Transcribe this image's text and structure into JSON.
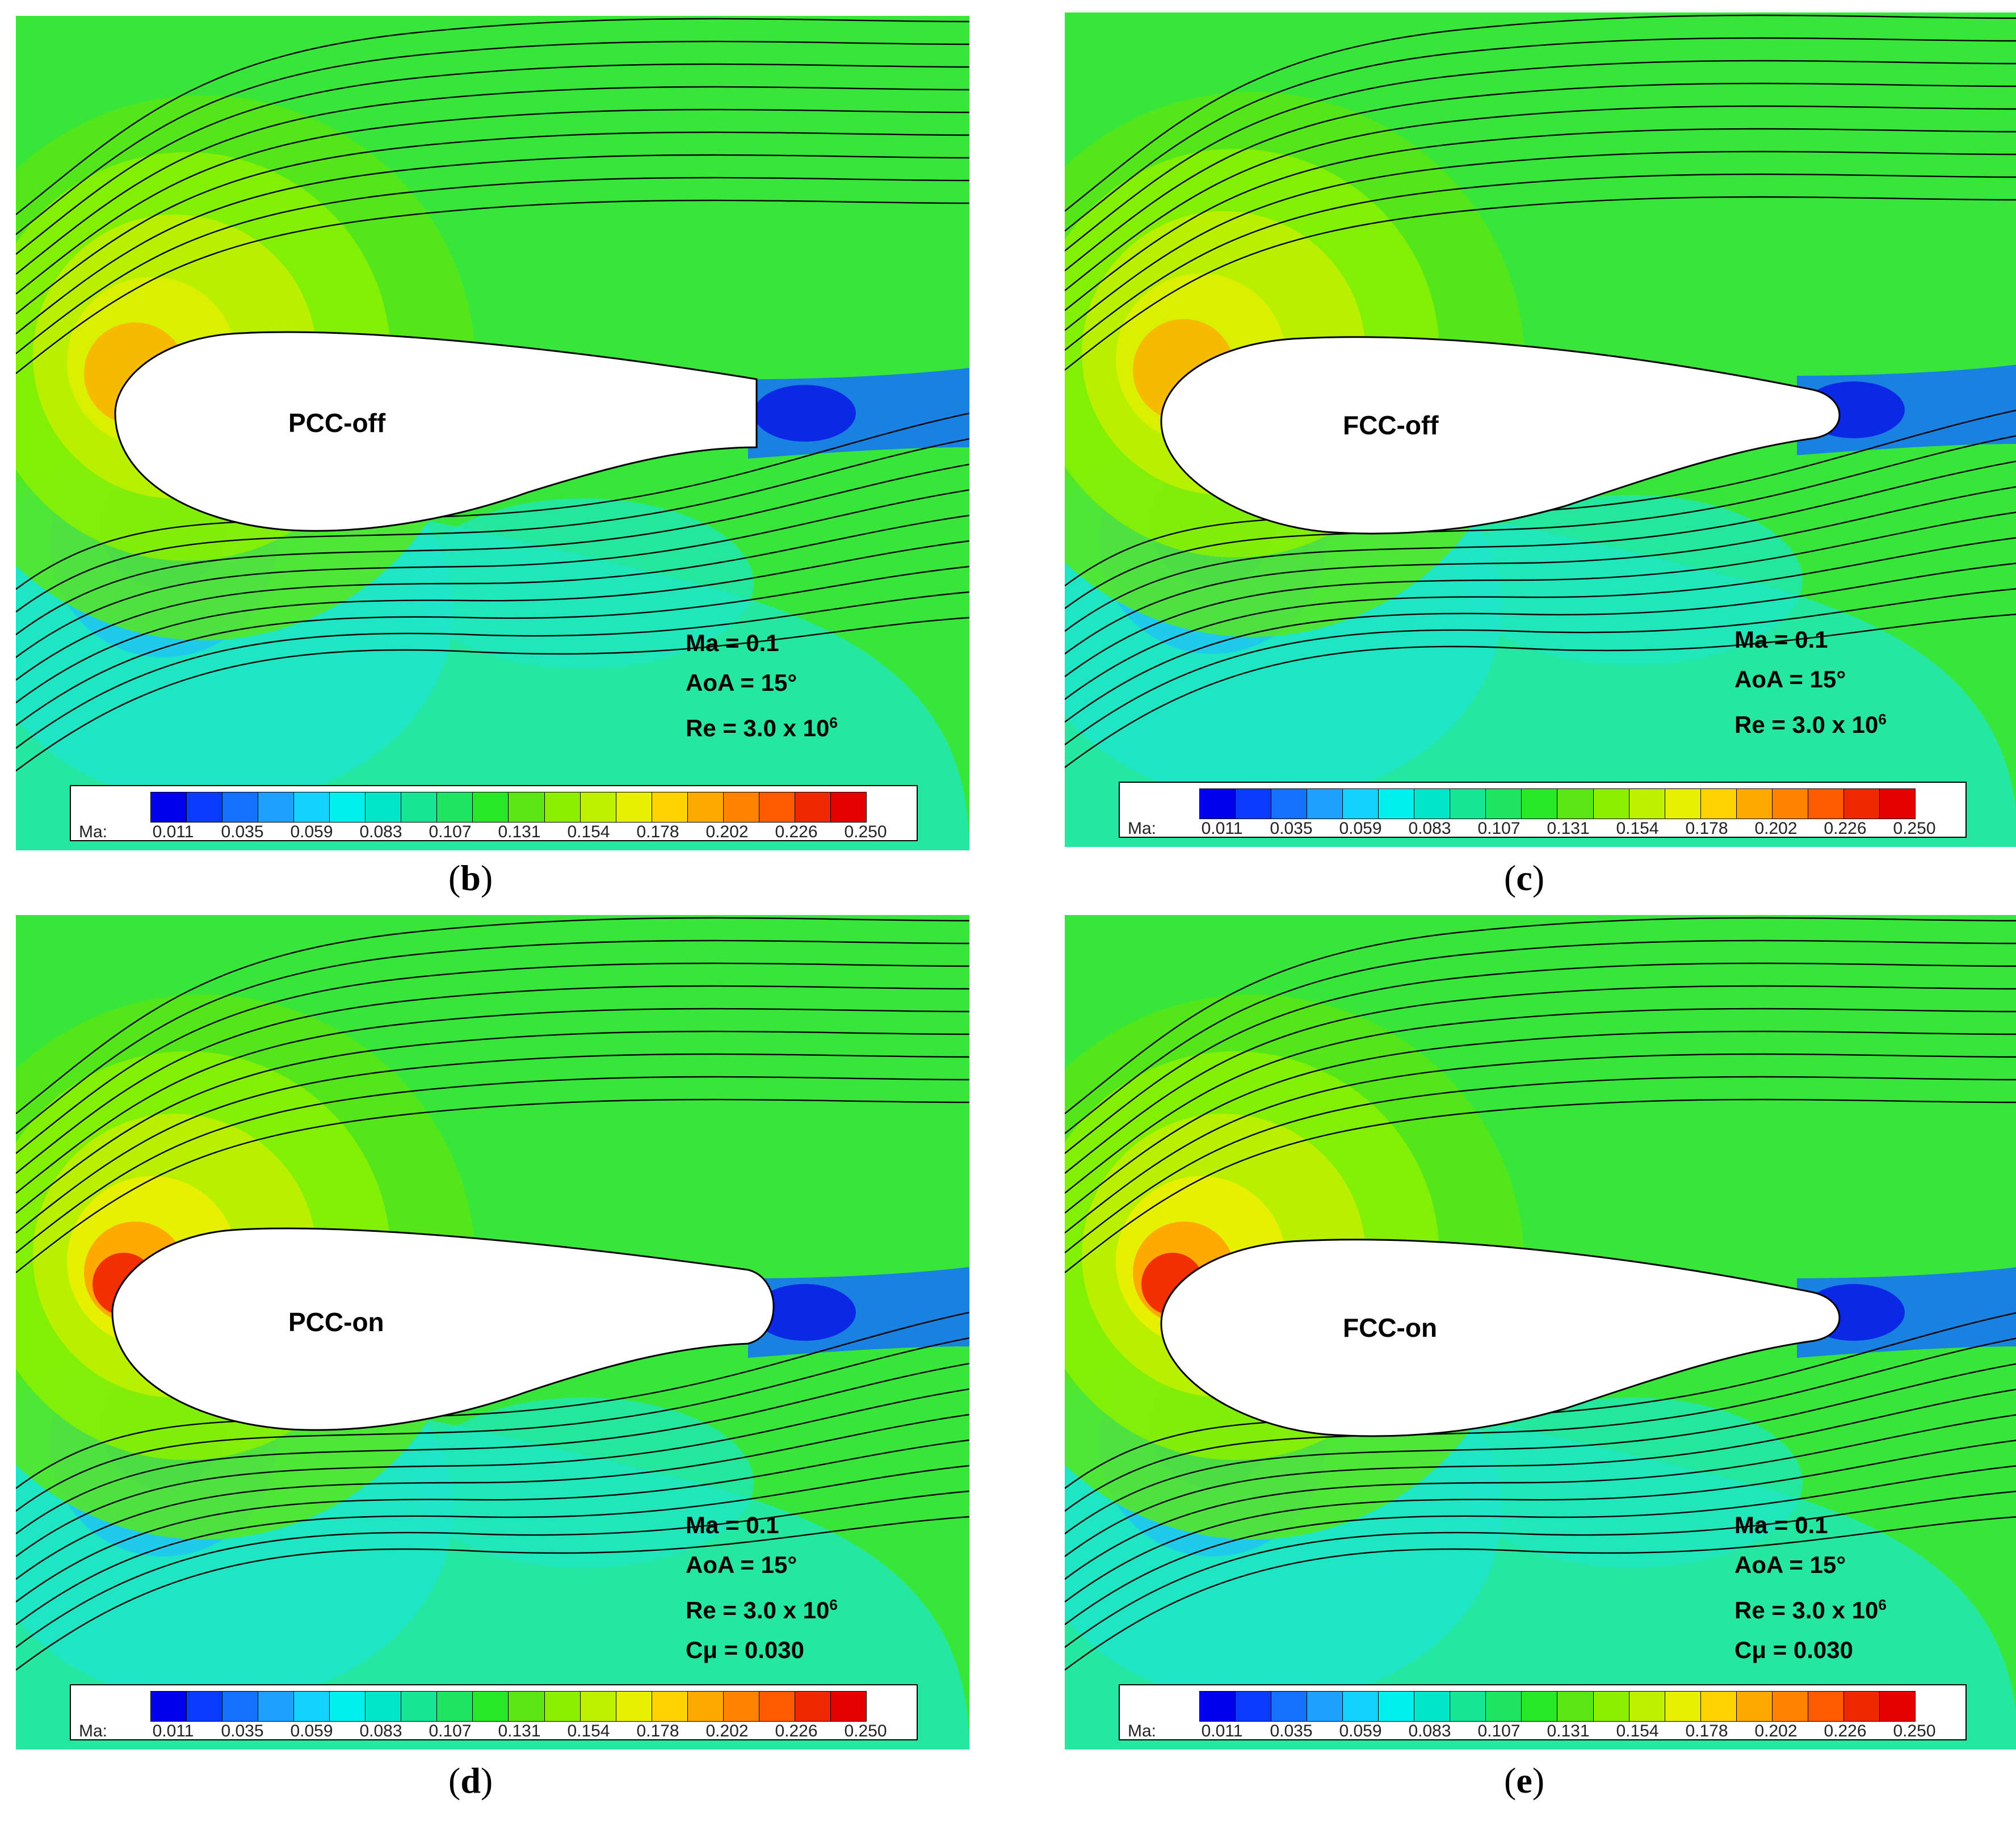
{
  "panels": [
    {
      "id": "b",
      "case": "PCC-off",
      "caption_letter": "b",
      "params": [
        "Ma = 0.1",
        "AoA = 15°",
        "Re = 3.0 x 10"
      ],
      "re_exp": "6",
      "cmu": ""
    },
    {
      "id": "c",
      "case": "FCC-off",
      "caption_letter": "c",
      "params": [
        "Ma = 0.1",
        "AoA = 15°",
        "Re = 3.0 x 10"
      ],
      "re_exp": "6",
      "cmu": ""
    },
    {
      "id": "d",
      "case": "PCC-on",
      "caption_letter": "d",
      "params": [
        "Ma = 0.1",
        "AoA = 15°",
        "Re = 3.0 x 10"
      ],
      "re_exp": "6",
      "cmu": "Cμ = 0.030"
    },
    {
      "id": "e",
      "case": "FCC-on",
      "caption_letter": "e",
      "params": [
        "Ma = 0.1",
        "AoA = 15°",
        "Re = 3.0 x 10"
      ],
      "re_exp": "6",
      "cmu": "Cμ = 0.030"
    }
  ],
  "legend": {
    "variable": "Ma:",
    "ticks": [
      "0.011",
      "0.035",
      "0.059",
      "0.083",
      "0.107",
      "0.131",
      "0.154",
      "0.178",
      "0.202",
      "0.226",
      "0.250"
    ],
    "colors": [
      "#0000ee",
      "#0a3cff",
      "#1470ff",
      "#1ea0ff",
      "#14d2ff",
      "#00f0f0",
      "#00e6c8",
      "#14e696",
      "#1ee664",
      "#28e628",
      "#5ae614",
      "#8cf000",
      "#bef000",
      "#e6f000",
      "#ffd200",
      "#ffaa00",
      "#ff8200",
      "#ff5a00",
      "#f02800",
      "#e60000"
    ]
  },
  "field_colors": {
    "background": "#38e63a",
    "low": "#1ee6c8",
    "very_low": "#14b4ff",
    "stall": "#0a28e6",
    "high": "#bef000",
    "peak": "#ffaa00",
    "airfoil": "#ffffff"
  }
}
